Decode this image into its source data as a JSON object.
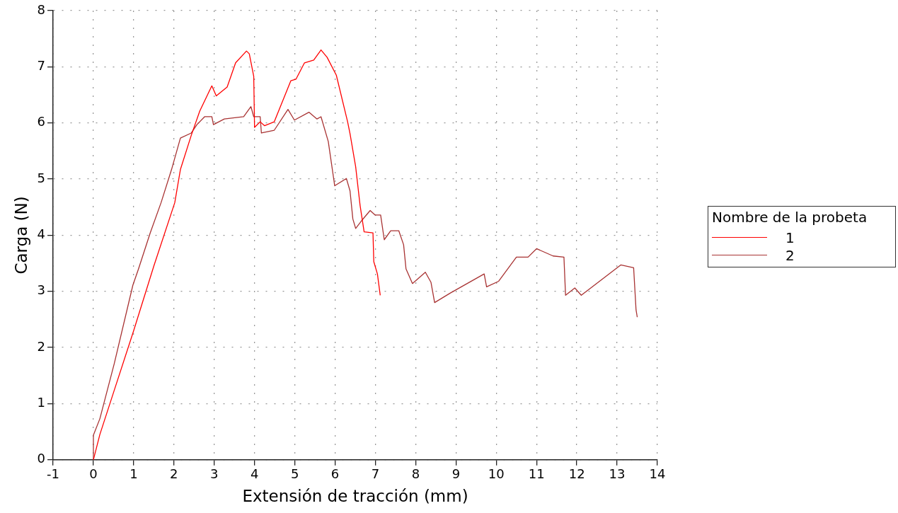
{
  "chart_data": {
    "type": "line",
    "xlabel": "Extensión de tracción (mm)",
    "ylabel": "Carga (N)",
    "legend_title": "Nombre de la probeta",
    "legend": "right",
    "grid": true,
    "marker": "none",
    "line_style": "solid",
    "xlim": [
      -1,
      14
    ],
    "xticks": [
      -1,
      0,
      1,
      2,
      3,
      4,
      5,
      6,
      7,
      8,
      9,
      10,
      11,
      12,
      13,
      14
    ],
    "ylim": [
      0,
      8
    ],
    "yticks": [
      0,
      1,
      2,
      3,
      4,
      5,
      6,
      7,
      8
    ],
    "series": [
      {
        "name": "1",
        "color": "#ff0000",
        "x": [
          0,
          0.16,
          0.5,
          1.0,
          1.5,
          2.02,
          2.16,
          2.43,
          2.64,
          2.94,
          3.05,
          3.32,
          3.53,
          3.8,
          3.87,
          3.98,
          4.0,
          4.14,
          4.25,
          4.49,
          4.9,
          5.03,
          5.24,
          5.47,
          5.65,
          5.8,
          6.03,
          6.31,
          6.37,
          6.51,
          6.62,
          6.72,
          6.94,
          6.96,
          7.05,
          7.12
        ],
        "values": [
          0,
          0.45,
          1.2,
          2.3,
          3.45,
          4.58,
          5.17,
          5.78,
          6.21,
          6.66,
          6.48,
          6.64,
          7.07,
          7.28,
          7.23,
          6.83,
          5.92,
          6.02,
          5.95,
          6.02,
          6.75,
          6.78,
          7.07,
          7.12,
          7.3,
          7.17,
          6.85,
          6.02,
          5.81,
          5.22,
          4.53,
          4.06,
          4.04,
          3.53,
          3.31,
          2.93
        ]
      },
      {
        "name": "2",
        "color": "#a83232",
        "x": [
          0,
          0,
          0.16,
          0.52,
          0.98,
          1.12,
          1.41,
          1.68,
          1.94,
          2.16,
          2.43,
          2.57,
          2.76,
          2.94,
          2.98,
          3.25,
          3.73,
          3.91,
          3.98,
          4.14,
          4.17,
          4.49,
          4.83,
          4.99,
          5.35,
          5.55,
          5.65,
          5.83,
          5.99,
          6.28,
          6.37,
          6.44,
          6.51,
          6.67,
          6.87,
          6.99,
          7.13,
          7.22,
          7.38,
          7.58,
          7.7,
          7.76,
          7.92,
          8.24,
          8.38,
          8.47,
          8.86,
          9.7,
          9.76,
          10.06,
          10.5,
          10.79,
          11.0,
          11.41,
          11.68,
          11.72,
          11.95,
          12.11,
          12.38,
          13.09,
          13.41,
          13.47,
          13.5
        ],
        "values": [
          0,
          0.44,
          0.73,
          1.72,
          3.11,
          3.4,
          4.04,
          4.58,
          5.17,
          5.73,
          5.82,
          5.97,
          6.11,
          6.11,
          5.97,
          6.07,
          6.11,
          6.29,
          6.11,
          6.11,
          5.82,
          5.87,
          6.24,
          6.05,
          6.19,
          6.07,
          6.11,
          5.67,
          4.88,
          5.01,
          4.79,
          4.29,
          4.12,
          4.27,
          4.44,
          4.36,
          4.36,
          3.92,
          4.08,
          4.08,
          3.83,
          3.4,
          3.14,
          3.34,
          3.16,
          2.8,
          2.97,
          3.31,
          3.08,
          3.18,
          3.61,
          3.61,
          3.76,
          3.63,
          3.61,
          2.93,
          3.06,
          2.93,
          3.08,
          3.47,
          3.42,
          2.67,
          2.54
        ]
      }
    ]
  }
}
